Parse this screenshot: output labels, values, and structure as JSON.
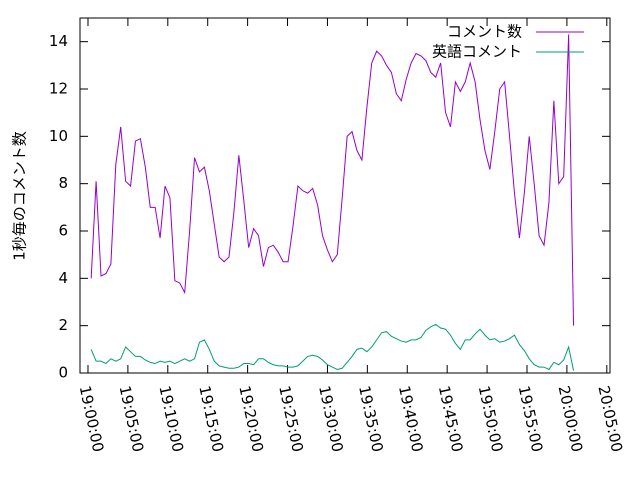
{
  "chart_data": {
    "type": "line",
    "ylabel": "1秒毎のコメント数",
    "x": [
      "19:00:24",
      "19:01:01",
      "19:01:38",
      "19:02:15",
      "19:02:52",
      "19:03:29",
      "19:04:06",
      "19:04:43",
      "19:05:20",
      "19:05:57",
      "19:06:34",
      "19:07:11",
      "19:07:48",
      "19:08:25",
      "19:09:02",
      "19:09:39",
      "19:10:16",
      "19:10:53",
      "19:11:30",
      "19:12:07",
      "19:12:44",
      "19:13:21",
      "19:13:58",
      "19:14:35",
      "19:15:12",
      "19:15:49",
      "19:16:26",
      "19:17:03",
      "19:17:40",
      "19:18:17",
      "19:18:54",
      "19:19:31",
      "19:20:08",
      "19:20:45",
      "19:21:22",
      "19:21:59",
      "19:22:36",
      "19:23:13",
      "19:23:50",
      "19:24:27",
      "19:25:04",
      "19:25:41",
      "19:26:18",
      "19:26:55",
      "19:27:32",
      "19:28:09",
      "19:28:46",
      "19:29:23",
      "19:30:00",
      "19:30:37",
      "19:31:14",
      "19:31:51",
      "19:32:28",
      "19:33:05",
      "19:33:42",
      "19:34:19",
      "19:34:56",
      "19:35:33",
      "19:36:10",
      "19:36:47",
      "19:37:24",
      "19:38:01",
      "19:38:38",
      "19:39:15",
      "19:39:52",
      "19:40:29",
      "19:41:06",
      "19:41:43",
      "19:42:20",
      "19:42:57",
      "19:43:34",
      "19:44:11",
      "19:44:48",
      "19:45:25",
      "19:46:02",
      "19:46:39",
      "19:47:16",
      "19:47:53",
      "19:48:30",
      "19:49:07",
      "19:49:44",
      "19:50:21",
      "19:50:58",
      "19:51:35",
      "19:52:12",
      "19:52:49",
      "19:53:26",
      "19:54:03",
      "19:54:40",
      "19:55:17",
      "19:55:54",
      "19:56:31",
      "19:57:08",
      "19:57:45",
      "19:58:22",
      "19:58:59",
      "19:59:36",
      "20:00:13",
      "20:00:50"
    ],
    "series": [
      {
        "name": "コメント数",
        "color": "#9400d3",
        "values": [
          4.0,
          8.1,
          4.1,
          4.2,
          4.6,
          8.8,
          10.4,
          8.1,
          7.9,
          9.8,
          9.9,
          8.7,
          7.0,
          7.0,
          5.7,
          7.9,
          7.4,
          3.9,
          3.8,
          3.4,
          6.0,
          9.1,
          8.5,
          8.7,
          7.7,
          6.3,
          4.9,
          4.7,
          4.9,
          6.8,
          9.2,
          7.3,
          5.3,
          6.1,
          5.8,
          4.5,
          5.3,
          5.4,
          5.1,
          4.7,
          4.7,
          6.2,
          7.9,
          7.7,
          7.6,
          7.8,
          7.1,
          5.8,
          5.2,
          4.7,
          5.0,
          7.4,
          10.0,
          10.2,
          9.4,
          9.0,
          11.2,
          13.1,
          13.6,
          13.4,
          13.0,
          12.7,
          11.8,
          11.5,
          12.4,
          13.1,
          13.5,
          13.4,
          13.2,
          12.7,
          12.5,
          13.1,
          11.0,
          10.4,
          12.3,
          11.9,
          12.3,
          13.1,
          12.3,
          10.7,
          9.4,
          8.6,
          10.2,
          12.0,
          12.3,
          10.0,
          7.6,
          5.7,
          7.6,
          10.0,
          8.0,
          5.8,
          5.4,
          7.2,
          11.5,
          8.0,
          8.3,
          14.3,
          2.0
        ]
      },
      {
        "name": "英語コメント",
        "color": "#009e73",
        "values": [
          1.0,
          0.5,
          0.5,
          0.4,
          0.6,
          0.5,
          0.6,
          1.1,
          0.9,
          0.7,
          0.7,
          0.55,
          0.45,
          0.4,
          0.5,
          0.45,
          0.5,
          0.4,
          0.5,
          0.6,
          0.5,
          0.6,
          1.3,
          1.4,
          1.0,
          0.5,
          0.3,
          0.25,
          0.2,
          0.2,
          0.25,
          0.4,
          0.4,
          0.35,
          0.6,
          0.6,
          0.45,
          0.35,
          0.3,
          0.3,
          0.25,
          0.25,
          0.3,
          0.5,
          0.7,
          0.75,
          0.7,
          0.55,
          0.35,
          0.25,
          0.15,
          0.2,
          0.45,
          0.7,
          1.0,
          1.05,
          0.9,
          1.1,
          1.4,
          1.7,
          1.75,
          1.55,
          1.45,
          1.35,
          1.3,
          1.4,
          1.4,
          1.5,
          1.8,
          1.95,
          2.05,
          1.9,
          1.85,
          1.6,
          1.25,
          1.0,
          1.4,
          1.4,
          1.65,
          1.85,
          1.6,
          1.4,
          1.45,
          1.3,
          1.35,
          1.45,
          1.6,
          1.2,
          0.95,
          0.6,
          0.35,
          0.25,
          0.25,
          0.15,
          0.45,
          0.35,
          0.55,
          1.1,
          0.1
        ]
      }
    ],
    "xlim": [
      "18:59:00",
      "20:05:24"
    ],
    "xticks": [
      "19:00:00",
      "19:05:00",
      "19:10:00",
      "19:15:00",
      "19:20:00",
      "19:25:00",
      "19:30:00",
      "19:35:00",
      "19:40:00",
      "19:45:00",
      "19:50:00",
      "19:55:00",
      "20:00:00",
      "20:05:00"
    ],
    "ylim": [
      0,
      15
    ],
    "yticks": [
      0,
      2,
      4,
      6,
      8,
      10,
      12,
      14
    ],
    "grid": false,
    "legend": "top-right"
  }
}
